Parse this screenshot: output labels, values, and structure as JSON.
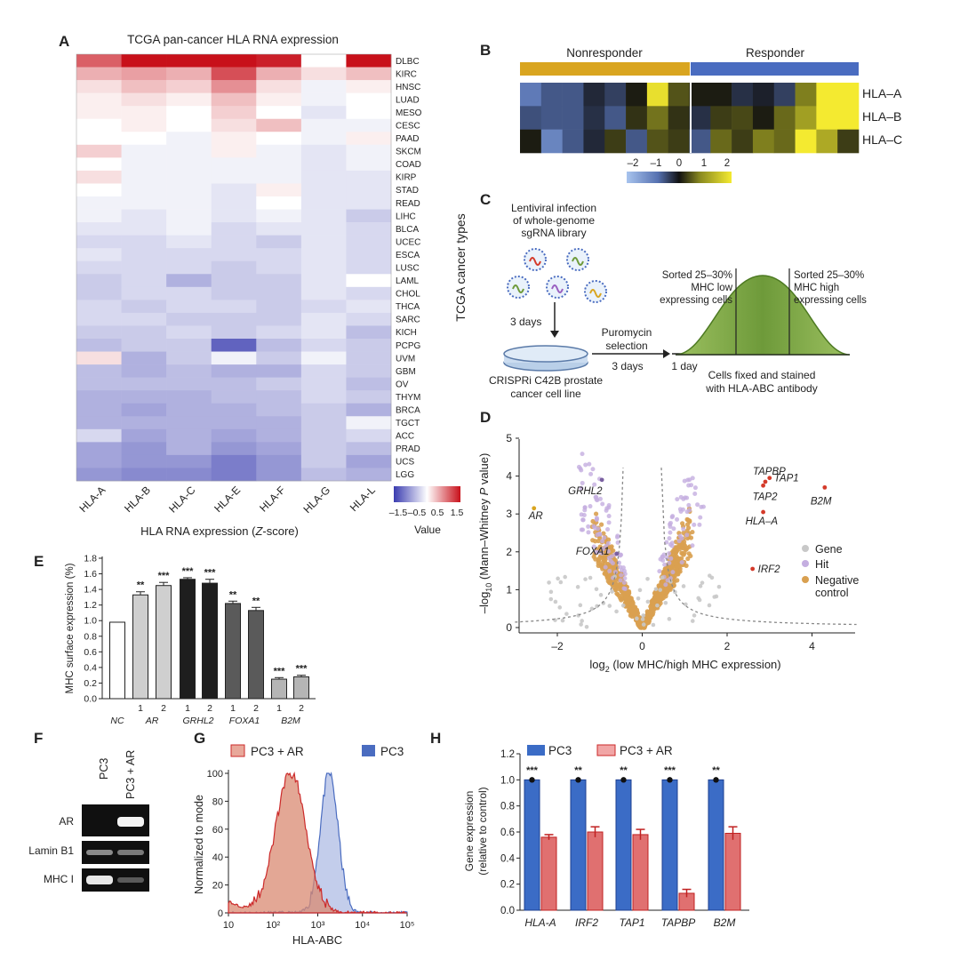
{
  "panels": {
    "A": {
      "label": "A",
      "title": "TCGA pan-cancer HLA RNA expression",
      "xlabel_pre": "HLA RNA expression (",
      "xlabel_ital": "Z",
      "xlabel_post": "-score)",
      "ylabel": "TCGA cancer types",
      "colorbar_title": "Value",
      "colorbar_ticks": [
        "–1.5",
        "–0.5",
        "0.5",
        "1.5"
      ],
      "columns": [
        "HLA-A",
        "HLA-B",
        "HLA-C",
        "HLA-E",
        "HLA-F",
        "HLA-G",
        "HLA-L"
      ],
      "rows": [
        "DLBC",
        "KIRC",
        "HNSC",
        "LUAD",
        "MESO",
        "CESC",
        "PAAD",
        "SKCM",
        "COAD",
        "KIRP",
        "STAD",
        "READ",
        "LIHC",
        "BLCA",
        "UCEC",
        "ESCA",
        "LUSC",
        "LAML",
        "CHOL",
        "THCA",
        "SARC",
        "KICH",
        "PCPG",
        "UVM",
        "GBM",
        "OV",
        "THYM",
        "BRCA",
        "TGCT",
        "ACC",
        "PRAD",
        "UCS",
        "LGG"
      ]
    },
    "B": {
      "label": "B",
      "groups": [
        "Nonresponder",
        "Responder"
      ],
      "group_colors": [
        "#d9a520",
        "#4a6cc0"
      ],
      "rows": [
        "HLA–A",
        "HLA–B",
        "HLA–C"
      ],
      "colorbar_ticks": [
        "–2",
        "–1",
        "0",
        "1",
        "2"
      ],
      "values": [
        [
          -1.3,
          -0.9,
          -0.9,
          -0.3,
          -0.6,
          0.1,
          1.9,
          0.6,
          0.1,
          0.1,
          -0.4,
          -0.2,
          -0.6,
          1.0,
          2.0,
          2.0
        ],
        [
          -0.8,
          -0.9,
          -0.9,
          -0.4,
          -0.9,
          0.3,
          0.9,
          0.3,
          -0.4,
          0.4,
          0.5,
          0.1,
          0.8,
          1.3,
          2.0,
          2.0
        ],
        [
          0.1,
          -1.4,
          -0.9,
          -0.3,
          0.4,
          -0.9,
          0.6,
          0.4,
          -0.9,
          0.8,
          0.4,
          1.0,
          0.8,
          2.0,
          1.4,
          0.4
        ]
      ]
    },
    "C": {
      "label": "C",
      "infection_text": [
        "Lentiviral infection",
        "of whole-genome",
        "sgRNA library"
      ],
      "days1": "3 days",
      "cell_line": [
        "CRISPRi C42B prostate",
        "cancer cell line"
      ],
      "puromycin": [
        "Puromycin",
        "selection"
      ],
      "days2": "3 days",
      "day3": "1 day",
      "fixed": [
        "Cells fixed and stained",
        "with HLA-ABC antibody"
      ],
      "low": [
        "Sorted 25–30%",
        "MHC low",
        "expressing cells"
      ],
      "high": [
        "Sorted 25–30%",
        "MHC high",
        "expressing cells"
      ]
    },
    "D": {
      "label": "D",
      "legend": [
        "Gene",
        "Hit",
        "Negative",
        "control"
      ],
      "legend_colors": [
        "#c8c8c8",
        "#c4aee0",
        "#d9a050"
      ],
      "annot_color": "#d43a2a"
    },
    "E": {
      "label": "E",
      "replicate_labels": [
        "1",
        "2",
        "1",
        "2",
        "1",
        "2",
        "1",
        "2"
      ],
      "group_labels": [
        "NC",
        "AR",
        "GRHL2",
        "FOXA1",
        "B2M"
      ],
      "sig": [
        "**",
        "***",
        "***",
        "***",
        "**",
        "**",
        "***",
        "***"
      ]
    },
    "F": {
      "label": "F",
      "lanes": [
        "PC3",
        "PC3 + AR"
      ],
      "lane_colors": [
        "#4a6cc0",
        "#cc2a2a"
      ],
      "bands": [
        "AR",
        "Lamin B1",
        "MHC I"
      ]
    },
    "G": {
      "label": "G",
      "legend": [
        "PC3 + AR",
        "PC3"
      ],
      "tick_labels": [
        "10",
        "10²",
        "10³",
        "10⁴",
        "10⁵"
      ],
      "y_ticks": [
        "0",
        "20",
        "40",
        "60",
        "80",
        "100"
      ]
    },
    "H": {
      "label": "H",
      "legend": [
        "PC3",
        "PC3 + AR"
      ],
      "sig": [
        "***",
        "**",
        "**",
        "***",
        "**"
      ]
    }
  },
  "chart_data": [
    {
      "id": "A",
      "type": "heatmap",
      "title": "TCGA pan-cancer HLA RNA expression",
      "xlabel": "HLA RNA expression (Z-score)",
      "ylabel": "TCGA cancer types",
      "x": [
        "HLA-A",
        "HLA-B",
        "HLA-C",
        "HLA-E",
        "HLA-F",
        "HLA-G",
        "HLA-L"
      ],
      "y": [
        "DLBC",
        "KIRC",
        "HNSC",
        "LUAD",
        "MESO",
        "CESC",
        "PAAD",
        "SKCM",
        "COAD",
        "KIRP",
        "STAD",
        "READ",
        "LIHC",
        "BLCA",
        "UCEC",
        "ESCA",
        "LUSC",
        "LAML",
        "CHOL",
        "THCA",
        "SARC",
        "KICH",
        "PCPG",
        "UVM",
        "GBM",
        "OV",
        "THYM",
        "BRCA",
        "TGCT",
        "ACC",
        "PRAD",
        "UCS",
        "LGG"
      ],
      "value_range": [
        -1.5,
        1.5
      ],
      "values": [
        [
          1.0,
          1.6,
          1.5,
          1.6,
          1.4,
          0.0,
          1.6
        ],
        [
          0.5,
          0.6,
          0.5,
          1.1,
          0.5,
          0.2,
          0.4
        ],
        [
          0.2,
          0.4,
          0.3,
          0.7,
          0.2,
          -0.1,
          0.1
        ],
        [
          0.1,
          0.2,
          0.1,
          0.4,
          0.1,
          -0.1,
          0.0
        ],
        [
          0.1,
          0.1,
          0.0,
          0.3,
          0.0,
          -0.2,
          0.0
        ],
        [
          0.0,
          0.1,
          0.0,
          0.2,
          0.4,
          -0.1,
          -0.1
        ],
        [
          0.0,
          0.0,
          -0.1,
          0.1,
          0.0,
          -0.1,
          0.1
        ],
        [
          0.3,
          -0.1,
          -0.1,
          0.1,
          -0.1,
          -0.2,
          -0.1
        ],
        [
          0.0,
          -0.1,
          -0.1,
          -0.1,
          -0.1,
          -0.2,
          -0.1
        ],
        [
          0.2,
          -0.1,
          -0.1,
          -0.1,
          -0.1,
          -0.2,
          -0.2
        ],
        [
          0.0,
          -0.1,
          -0.1,
          -0.2,
          0.1,
          -0.2,
          -0.2
        ],
        [
          -0.1,
          -0.1,
          -0.1,
          -0.2,
          0.0,
          -0.2,
          -0.2
        ],
        [
          -0.1,
          -0.2,
          -0.1,
          -0.2,
          -0.1,
          -0.2,
          -0.4
        ],
        [
          -0.2,
          -0.2,
          -0.1,
          -0.3,
          -0.2,
          -0.2,
          -0.3
        ],
        [
          -0.3,
          -0.3,
          -0.2,
          -0.3,
          -0.4,
          -0.2,
          -0.3
        ],
        [
          -0.2,
          -0.3,
          -0.3,
          -0.3,
          -0.3,
          -0.2,
          -0.3
        ],
        [
          -0.3,
          -0.3,
          -0.3,
          -0.4,
          -0.3,
          -0.2,
          -0.3
        ],
        [
          -0.4,
          -0.3,
          -0.6,
          -0.4,
          -0.4,
          -0.2,
          0.0
        ],
        [
          -0.4,
          -0.3,
          -0.3,
          -0.4,
          -0.4,
          -0.2,
          -0.3
        ],
        [
          -0.3,
          -0.4,
          -0.3,
          -0.3,
          -0.4,
          -0.3,
          -0.2
        ],
        [
          -0.3,
          -0.3,
          -0.4,
          -0.4,
          -0.4,
          -0.2,
          -0.3
        ],
        [
          -0.4,
          -0.4,
          -0.3,
          -0.4,
          -0.3,
          -0.2,
          -0.5
        ],
        [
          -0.5,
          -0.4,
          -0.4,
          -1.2,
          -0.5,
          -0.3,
          -0.4
        ],
        [
          0.2,
          -0.6,
          -0.4,
          -0.1,
          -0.4,
          -0.1,
          -0.4
        ],
        [
          -0.5,
          -0.6,
          -0.5,
          -0.6,
          -0.6,
          -0.3,
          -0.4
        ],
        [
          -0.5,
          -0.5,
          -0.5,
          -0.5,
          -0.4,
          -0.3,
          -0.5
        ],
        [
          -0.6,
          -0.6,
          -0.6,
          -0.5,
          -0.5,
          -0.3,
          -0.4
        ],
        [
          -0.6,
          -0.7,
          -0.6,
          -0.6,
          -0.5,
          -0.4,
          -0.6
        ],
        [
          -0.6,
          -0.6,
          -0.6,
          -0.6,
          -0.6,
          -0.4,
          -0.1
        ],
        [
          -0.3,
          -0.7,
          -0.6,
          -0.7,
          -0.6,
          -0.4,
          -0.3
        ],
        [
          -0.7,
          -0.8,
          -0.6,
          -0.8,
          -0.7,
          -0.4,
          -0.5
        ],
        [
          -0.7,
          -0.8,
          -0.8,
          -1.0,
          -0.8,
          -0.4,
          -0.7
        ],
        [
          -0.8,
          -0.9,
          -0.9,
          -1.0,
          -0.8,
          -0.5,
          -0.6
        ]
      ]
    },
    {
      "id": "D",
      "type": "scatter",
      "xlabel": "log2 (low MHC/high MHC expression)",
      "ylabel": "–log10 (Mann–Whitney P value)",
      "xlim": [
        -3.1,
        5.2
      ],
      "ylim": [
        -0.2,
        5
      ],
      "x_ticks": [
        -2,
        0,
        2,
        4
      ],
      "y_ticks": [
        0,
        1,
        2,
        3,
        4,
        5
      ],
      "annotated_points": [
        {
          "label": "TAPBP",
          "x": 2.9,
          "y": 3.85
        },
        {
          "label": "TAP1",
          "x": 3.0,
          "y": 3.95
        },
        {
          "label": "TAP2",
          "x": 2.85,
          "y": 3.75
        },
        {
          "label": "B2M",
          "x": 4.3,
          "y": 3.7
        },
        {
          "label": "HLA–A",
          "x": 2.85,
          "y": 3.05
        },
        {
          "label": "IRF2",
          "x": 2.6,
          "y": 1.55
        },
        {
          "label": "GRHL2",
          "x": -0.95,
          "y": 3.9
        },
        {
          "label": "AR",
          "x": -2.55,
          "y": 3.15
        },
        {
          "label": "FOXA1",
          "x": -0.6,
          "y": 1.95
        }
      ]
    },
    {
      "id": "E",
      "type": "bar",
      "ylabel": "MHC surface expression (%)",
      "ylim": [
        0,
        1.8
      ],
      "y_ticks": [
        0,
        0.2,
        0.4,
        0.6,
        0.8,
        1.0,
        1.2,
        1.4,
        1.6,
        1.8
      ],
      "categories": [
        "NC",
        "AR 1",
        "AR 2",
        "GRHL2 1",
        "GRHL2 2",
        "FOXA1 1",
        "FOXA1 2",
        "B2M 1",
        "B2M 2"
      ],
      "values": [
        0.98,
        1.33,
        1.45,
        1.53,
        1.48,
        1.22,
        1.13,
        0.25,
        0.28
      ],
      "errors": [
        0.0,
        0.04,
        0.04,
        0.02,
        0.05,
        0.03,
        0.04,
        0.02,
        0.02
      ]
    },
    {
      "id": "G",
      "type": "area",
      "xlabel": "HLA-ABC",
      "ylabel": "Normalized to mode",
      "x_scale": "log",
      "xlim": [
        10,
        100000
      ],
      "ylim": [
        0,
        100
      ],
      "series": [
        {
          "name": "PC3 + AR",
          "peak_x": 250,
          "peak_y": 100
        },
        {
          "name": "PC3",
          "peak_x": 1800,
          "peak_y": 100
        }
      ]
    },
    {
      "id": "H",
      "type": "bar",
      "ylabel": "Gene expression (relative to control)",
      "ylim": [
        0,
        1.2
      ],
      "y_ticks": [
        0,
        0.2,
        0.4,
        0.6,
        0.8,
        1.0,
        1.2
      ],
      "categories": [
        "HLA-A",
        "IRF2",
        "TAP1",
        "TAPBP",
        "B2M"
      ],
      "series": [
        {
          "name": "PC3",
          "values": [
            1.0,
            1.0,
            1.0,
            1.0,
            1.0
          ],
          "errors": [
            0.01,
            0.01,
            0.01,
            0.01,
            0.01
          ]
        },
        {
          "name": "PC3 + AR",
          "values": [
            0.56,
            0.6,
            0.58,
            0.13,
            0.59
          ],
          "errors": [
            0.02,
            0.04,
            0.04,
            0.03,
            0.05
          ]
        }
      ]
    }
  ]
}
